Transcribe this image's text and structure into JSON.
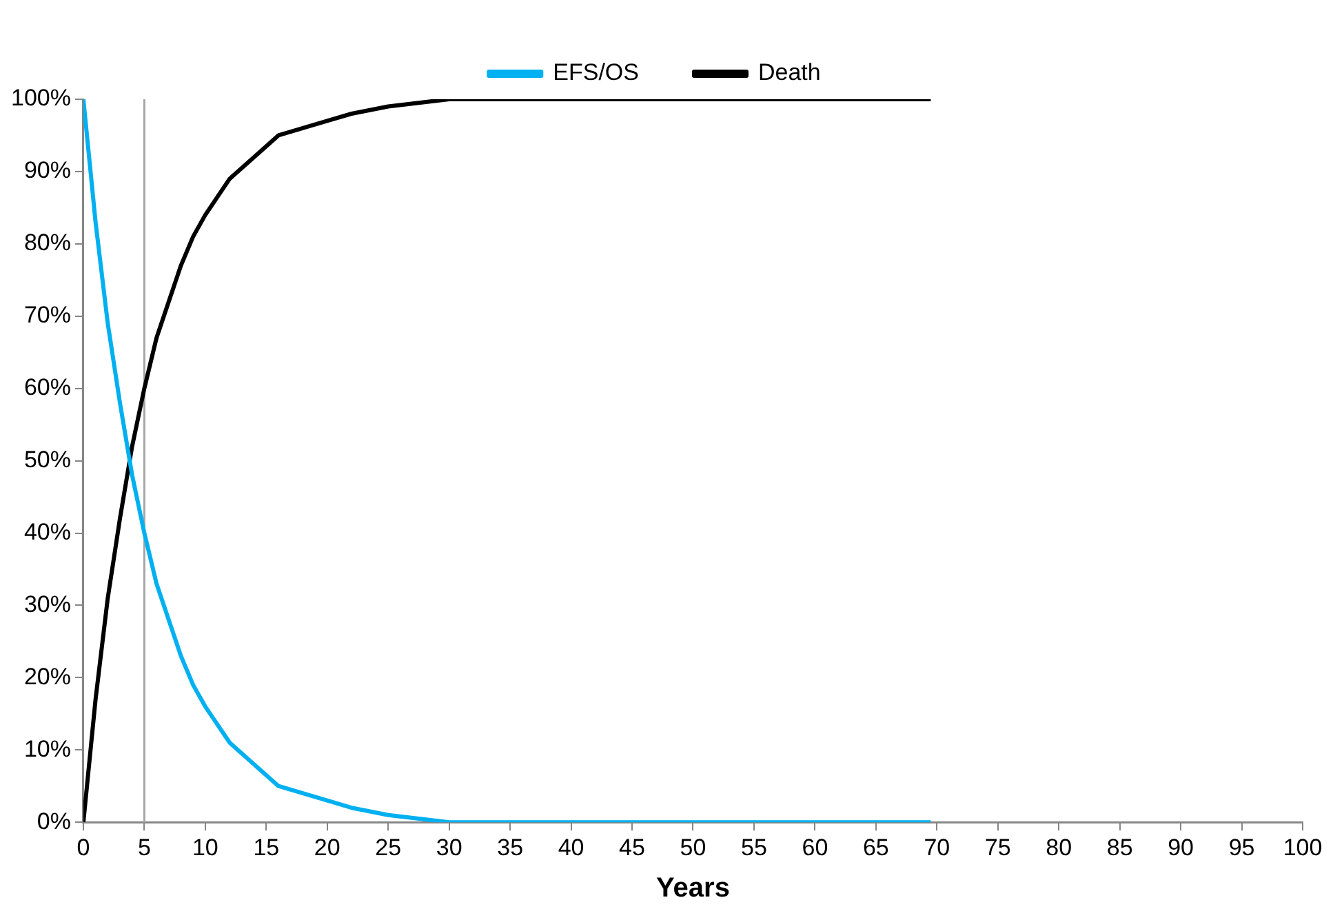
{
  "chart_data": {
    "type": "line",
    "xlabel": "Years",
    "x": [
      0,
      1,
      2,
      3,
      4,
      5,
      6,
      7,
      8,
      9,
      10,
      12,
      14,
      16,
      18,
      20,
      22,
      25,
      30,
      35,
      40,
      50,
      60,
      69.5
    ],
    "series": [
      {
        "name": "EFS/OS",
        "color": "#00b0f0",
        "values": [
          100,
          83,
          69,
          58,
          48,
          40,
          33,
          28,
          23,
          19,
          16,
          11,
          8,
          5,
          4,
          3,
          2,
          1,
          0,
          0,
          0,
          0,
          0,
          0
        ]
      },
      {
        "name": "Death",
        "color": "#000000",
        "values": [
          0,
          17,
          31,
          42,
          52,
          60,
          67,
          72,
          77,
          81,
          84,
          89,
          92,
          95,
          96,
          97,
          98,
          99,
          100,
          100,
          100,
          100,
          100,
          100
        ]
      }
    ],
    "xlim": [
      0,
      100
    ],
    "xticks": [
      0,
      5,
      10,
      15,
      20,
      25,
      30,
      35,
      40,
      45,
      50,
      55,
      60,
      65,
      70,
      75,
      80,
      85,
      90,
      95,
      100
    ],
    "ylim": [
      0,
      100
    ],
    "yticks": [
      {
        "value": 0,
        "label": "0%"
      },
      {
        "value": 10,
        "label": "10%"
      },
      {
        "value": 20,
        "label": "20%"
      },
      {
        "value": 30,
        "label": "30%"
      },
      {
        "value": 40,
        "label": "40%"
      },
      {
        "value": 50,
        "label": "50%"
      },
      {
        "value": 60,
        "label": "60%"
      },
      {
        "value": 70,
        "label": "70%"
      },
      {
        "value": 80,
        "label": "80%"
      },
      {
        "value": 90,
        "label": "90%"
      },
      {
        "value": 100,
        "label": "100%"
      }
    ],
    "ref_lines": [
      {
        "axis": "x",
        "value": 5,
        "color": "#a6a6a6"
      }
    ],
    "grid": false,
    "legend": "top",
    "marker": "none",
    "line_style": "solid"
  }
}
